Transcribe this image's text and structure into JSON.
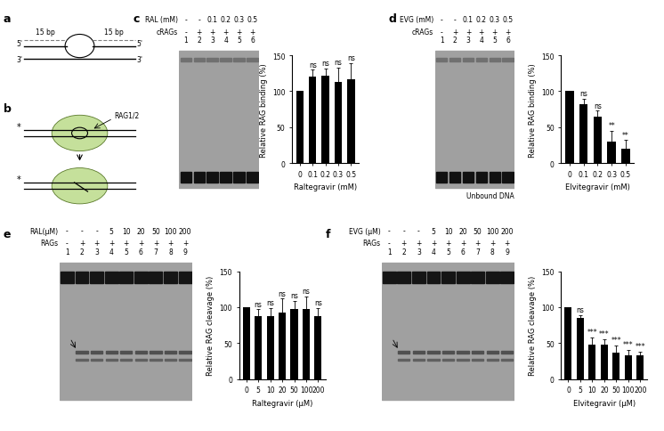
{
  "panel_letters": [
    "a",
    "b",
    "c",
    "d",
    "e",
    "f"
  ],
  "diagram_a": {
    "left_ends": [
      "5'",
      "3'"
    ],
    "right_ends": [
      "5'",
      "3'"
    ],
    "flank_label": "15 bp"
  },
  "diagram_b": {
    "protein": "RAG1/2",
    "mark": "*"
  },
  "gels": [
    {
      "rows": [
        {
          "label": "RAL (mM)",
          "lanes": [
            "-",
            "-",
            "0.1",
            "0.2",
            "0.3",
            "0.5"
          ]
        },
        {
          "label": "cRAGs",
          "lanes": [
            "-",
            "+",
            "+",
            "+",
            "+",
            "+"
          ]
        }
      ],
      "lane_numbers": [
        1,
        2,
        3,
        4,
        5,
        6
      ]
    },
    {
      "rows": [
        {
          "label": "EVG (mM)",
          "lanes": [
            "-",
            "-",
            "0.1",
            "0.2",
            "0.3",
            "0.5"
          ]
        },
        {
          "label": "cRAGs",
          "lanes": [
            "-",
            "+",
            "+",
            "+",
            "+",
            "+"
          ]
        }
      ],
      "lane_numbers": [
        1,
        2,
        3,
        4,
        5,
        6
      ],
      "side_label": "Unbound DNA"
    },
    {
      "rows": [
        {
          "label": "RAL(μM)",
          "lanes": [
            "-",
            "-",
            "-",
            "5",
            "10",
            "20",
            "50",
            "100",
            "200"
          ]
        },
        {
          "label": "RAGs",
          "lanes": [
            "-",
            "+",
            "+",
            "+",
            "+",
            "+",
            "+",
            "+",
            "+"
          ]
        }
      ],
      "lane_numbers": [
        1,
        2,
        3,
        4,
        5,
        6,
        7,
        8,
        9
      ]
    },
    {
      "rows": [
        {
          "label": "EVG (μM)",
          "lanes": [
            "-",
            "-",
            "-",
            "5",
            "10",
            "20",
            "50",
            "100",
            "200"
          ]
        },
        {
          "label": "RAGs",
          "lanes": [
            "-",
            "+",
            "+",
            "+",
            "+",
            "+",
            "+",
            "+",
            "+"
          ]
        }
      ],
      "lane_numbers": [
        1,
        2,
        3,
        4,
        5,
        6,
        7,
        8,
        9
      ]
    }
  ],
  "chart_data": [
    {
      "type": "bar",
      "x_label": "Raltegravir (mM)",
      "y_label": "Relative RAG binding (%)",
      "categories": [
        "0",
        "0.1",
        "0.2",
        "0.3",
        "0.5"
      ],
      "values": [
        100,
        120,
        122,
        113,
        117
      ],
      "errors": [
        0,
        10,
        10,
        20,
        22
      ],
      "significance": [
        null,
        "ns",
        "ns",
        "ns",
        "ns"
      ],
      "color": "#000000",
      "ylim": [
        0,
        150
      ],
      "yticks": [
        0,
        50,
        100,
        150
      ]
    },
    {
      "type": "bar",
      "x_label": "Elvitegravir (mM)",
      "y_label": "Relative RAG binding (%)",
      "categories": [
        "0",
        "0.1",
        "0.2",
        "0.3",
        "0.5"
      ],
      "values": [
        100,
        82,
        65,
        30,
        20
      ],
      "errors": [
        0,
        8,
        8,
        15,
        12
      ],
      "significance": [
        null,
        "ns",
        "ns",
        "**",
        "**"
      ],
      "color": "#000000",
      "ylim": [
        0,
        150
      ],
      "yticks": [
        0,
        50,
        100,
        150
      ]
    },
    {
      "type": "bar",
      "x_label": "Raltegravir (μM)",
      "y_label": "Relative RAG cleavage (%)",
      "categories": [
        "0",
        "5",
        "10",
        "20",
        "50",
        "100",
        "200"
      ],
      "values": [
        100,
        87,
        87,
        92,
        97,
        97,
        87
      ],
      "errors": [
        0,
        10,
        12,
        20,
        12,
        18,
        12
      ],
      "significance": [
        null,
        "ns",
        "ns",
        "ns",
        "ns",
        "ns",
        "ns"
      ],
      "color": "#000000",
      "ylim": [
        0,
        150
      ],
      "yticks": [
        0,
        50,
        100,
        150
      ]
    },
    {
      "type": "bar",
      "x_label": "Elvitegravir (μM)",
      "y_label": "Relative RAG cleavage (%)",
      "categories": [
        "0",
        "5",
        "10",
        "20",
        "50",
        "100",
        "200"
      ],
      "values": [
        100,
        85,
        48,
        48,
        37,
        33,
        33
      ],
      "errors": [
        0,
        4,
        10,
        8,
        10,
        8,
        5
      ],
      "significance": [
        null,
        "ns",
        "***",
        "***",
        "***",
        "***",
        "***"
      ],
      "color": "#000000",
      "ylim": [
        0,
        150
      ],
      "yticks": [
        0,
        50,
        100,
        150
      ]
    }
  ]
}
